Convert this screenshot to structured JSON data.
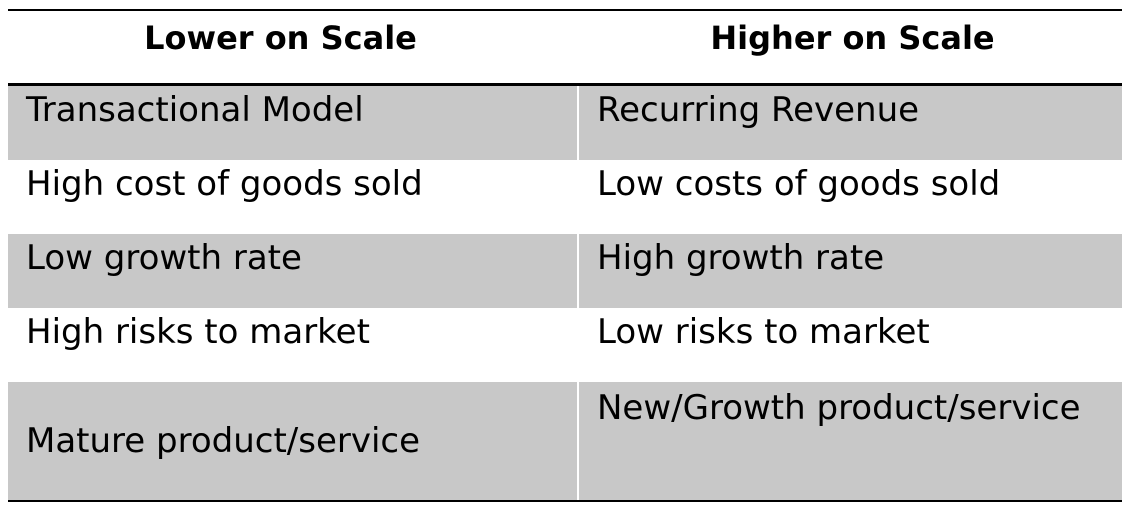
{
  "table": {
    "headers": [
      "Lower on Scale",
      "Higher on Scale"
    ],
    "rows": [
      {
        "lower": "Transactional Model",
        "higher": "Recurring Revenue"
      },
      {
        "lower": "High cost of goods sold",
        "higher": "Low costs of goods sold"
      },
      {
        "lower": "Low growth rate",
        "higher": "High growth rate"
      },
      {
        "lower": "High risks to market",
        "higher": "Low risks to market"
      },
      {
        "lower": "Mature product/service",
        "higher": "New/Growth product/service"
      }
    ]
  },
  "colors": {
    "shaded_row": "#c8c8c8",
    "rule": "#000000",
    "text": "#000000"
  }
}
